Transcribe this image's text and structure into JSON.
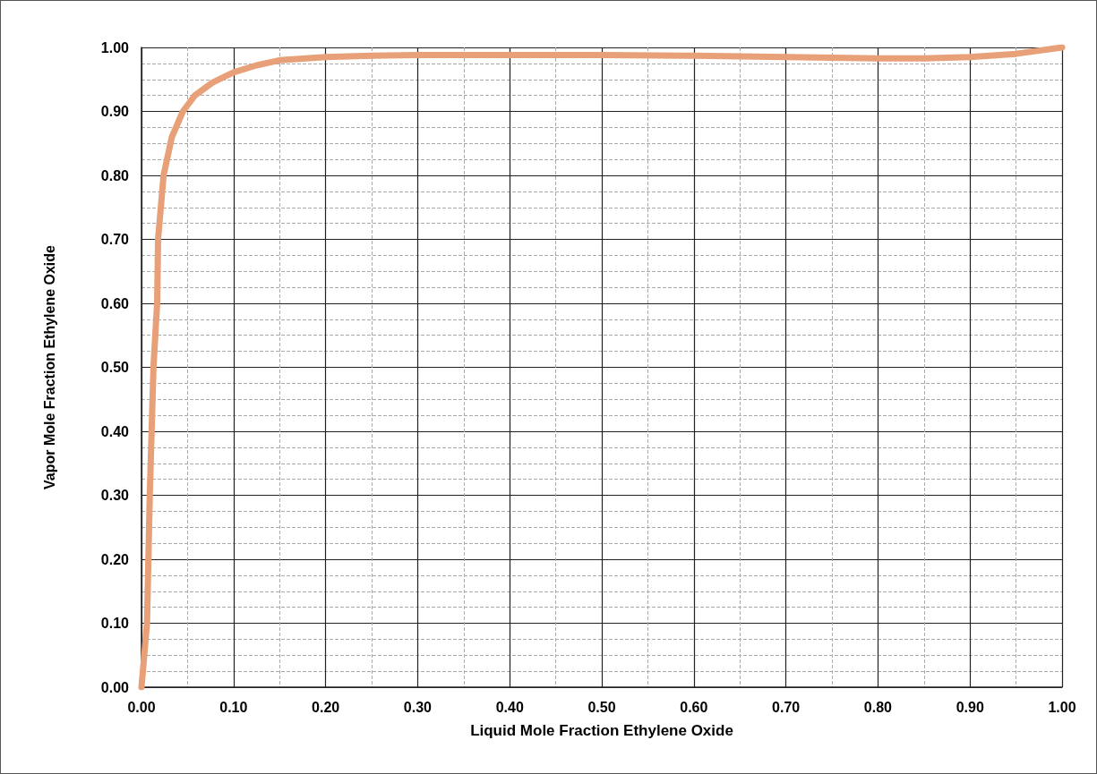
{
  "chart_data": {
    "type": "line",
    "xlabel": "Liquid Mole Fraction Ethylene Oxide",
    "ylabel": "Vapor Mole Fraction Ethylene Oxide",
    "series": [
      {
        "color": "#e8a078",
        "x": [
          0,
          0.003,
          0.006,
          0.009,
          0.013,
          0.017,
          0.018,
          0.024,
          0.033,
          0.045,
          0.058,
          0.077,
          0.1,
          0.125,
          0.15,
          0.2,
          0.25,
          0.3,
          0.4,
          0.5,
          0.6,
          0.7,
          0.8,
          0.85,
          0.9,
          0.95,
          1.0
        ],
        "values": [
          0,
          0.05,
          0.1,
          0.3,
          0.5,
          0.6,
          0.7,
          0.8,
          0.86,
          0.9,
          0.925,
          0.945,
          0.961,
          0.972,
          0.98,
          0.985,
          0.987,
          0.988,
          0.988,
          0.988,
          0.987,
          0.985,
          0.983,
          0.983,
          0.985,
          0.99,
          1.0
        ]
      }
    ],
    "xlim": [
      0,
      1
    ],
    "ylim": [
      0,
      1
    ],
    "xticks": [
      {
        "value": 0,
        "label": "0.00"
      },
      {
        "value": 0.1,
        "label": "0.10"
      },
      {
        "value": 0.2,
        "label": "0.20"
      },
      {
        "value": 0.3,
        "label": "0.30"
      },
      {
        "value": 0.4,
        "label": "0.40"
      },
      {
        "value": 0.5,
        "label": "0.50"
      },
      {
        "value": 0.6,
        "label": "0.60"
      },
      {
        "value": 0.7,
        "label": "0.70"
      },
      {
        "value": 0.8,
        "label": "0.80"
      },
      {
        "value": 0.9,
        "label": "0.90"
      },
      {
        "value": 1,
        "label": "1.00"
      }
    ],
    "yticks": [
      {
        "value": 0,
        "label": "0.00"
      },
      {
        "value": 0.1,
        "label": "0.10"
      },
      {
        "value": 0.2,
        "label": "0.20"
      },
      {
        "value": 0.3,
        "label": "0.30"
      },
      {
        "value": 0.4,
        "label": "0.40"
      },
      {
        "value": 0.5,
        "label": "0.50"
      },
      {
        "value": 0.6,
        "label": "0.60"
      },
      {
        "value": 0.7,
        "label": "0.70"
      },
      {
        "value": 0.8,
        "label": "0.80"
      },
      {
        "value": 0.9,
        "label": "0.90"
      },
      {
        "value": 1,
        "label": "1.00"
      }
    ],
    "grid": true,
    "marker": "none",
    "line_style": "solid"
  }
}
